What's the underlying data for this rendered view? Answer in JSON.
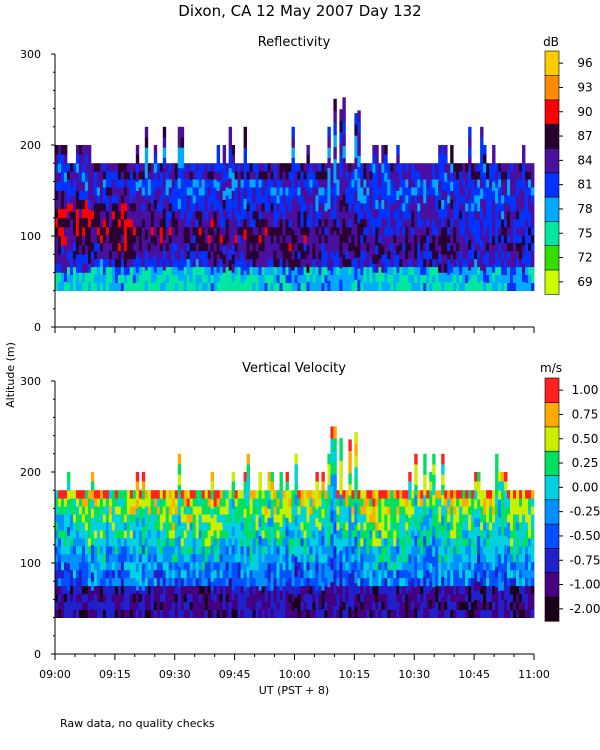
{
  "chart_data": {
    "type": "heatmap",
    "title": "Dixon, CA 12 May 2007  Day 132",
    "footnote": "Raw data, no quality checks",
    "xlabel": "UT  (PST + 8)",
    "ylabel": "Altitude  (m)",
    "x_range_minutes": [
      0,
      120
    ],
    "x_ticks": [
      "09:00",
      "09:15",
      "09:30",
      "09:45",
      "10:00",
      "10:15",
      "10:30",
      "10:45",
      "11:00"
    ],
    "panels": [
      {
        "name": "reflectivity",
        "title": "Reflectivity",
        "units": "dB",
        "ylim": [
          0,
          300
        ],
        "y_ticks": [
          "0",
          "100",
          "200",
          "300"
        ],
        "colorbar_labels": [
          "69",
          "72",
          "75",
          "78",
          "81",
          "84",
          "87",
          "90",
          "93",
          "96"
        ],
        "colorbar_colors": [
          "#ccff00",
          "#33dd00",
          "#00e8a0",
          "#00aaff",
          "#0033ff",
          "#4b0fa0",
          "#2a0030",
          "#ff0000",
          "#ff8c00",
          "#ffcc00"
        ],
        "data_base_altitude_m": 40,
        "typical_top_altitude_m": 180,
        "max_top_altitude_m": 260,
        "max_reflectivity_layer_m": [
          80,
          150
        ]
      },
      {
        "name": "vertical_velocity",
        "title": "Vertical Velocity",
        "units": "m/s",
        "ylim": [
          0,
          300
        ],
        "y_ticks": [
          "0",
          "100",
          "200",
          "300"
        ],
        "colorbar_labels": [
          "-2.00",
          "-1.00",
          "-0.75",
          "-0.50",
          "-0.25",
          "0.00",
          "0.25",
          "0.50",
          "0.75",
          "1.00"
        ],
        "colorbar_colors": [
          "#1a0018",
          "#440080",
          "#2020cc",
          "#0050ff",
          "#0090ff",
          "#00d0e0",
          "#00e060",
          "#ccee00",
          "#ffaa00",
          "#ff2020"
        ],
        "data_base_altitude_m": 40,
        "typical_top_altitude_m": 180,
        "max_top_altitude_m": 260
      }
    ]
  }
}
